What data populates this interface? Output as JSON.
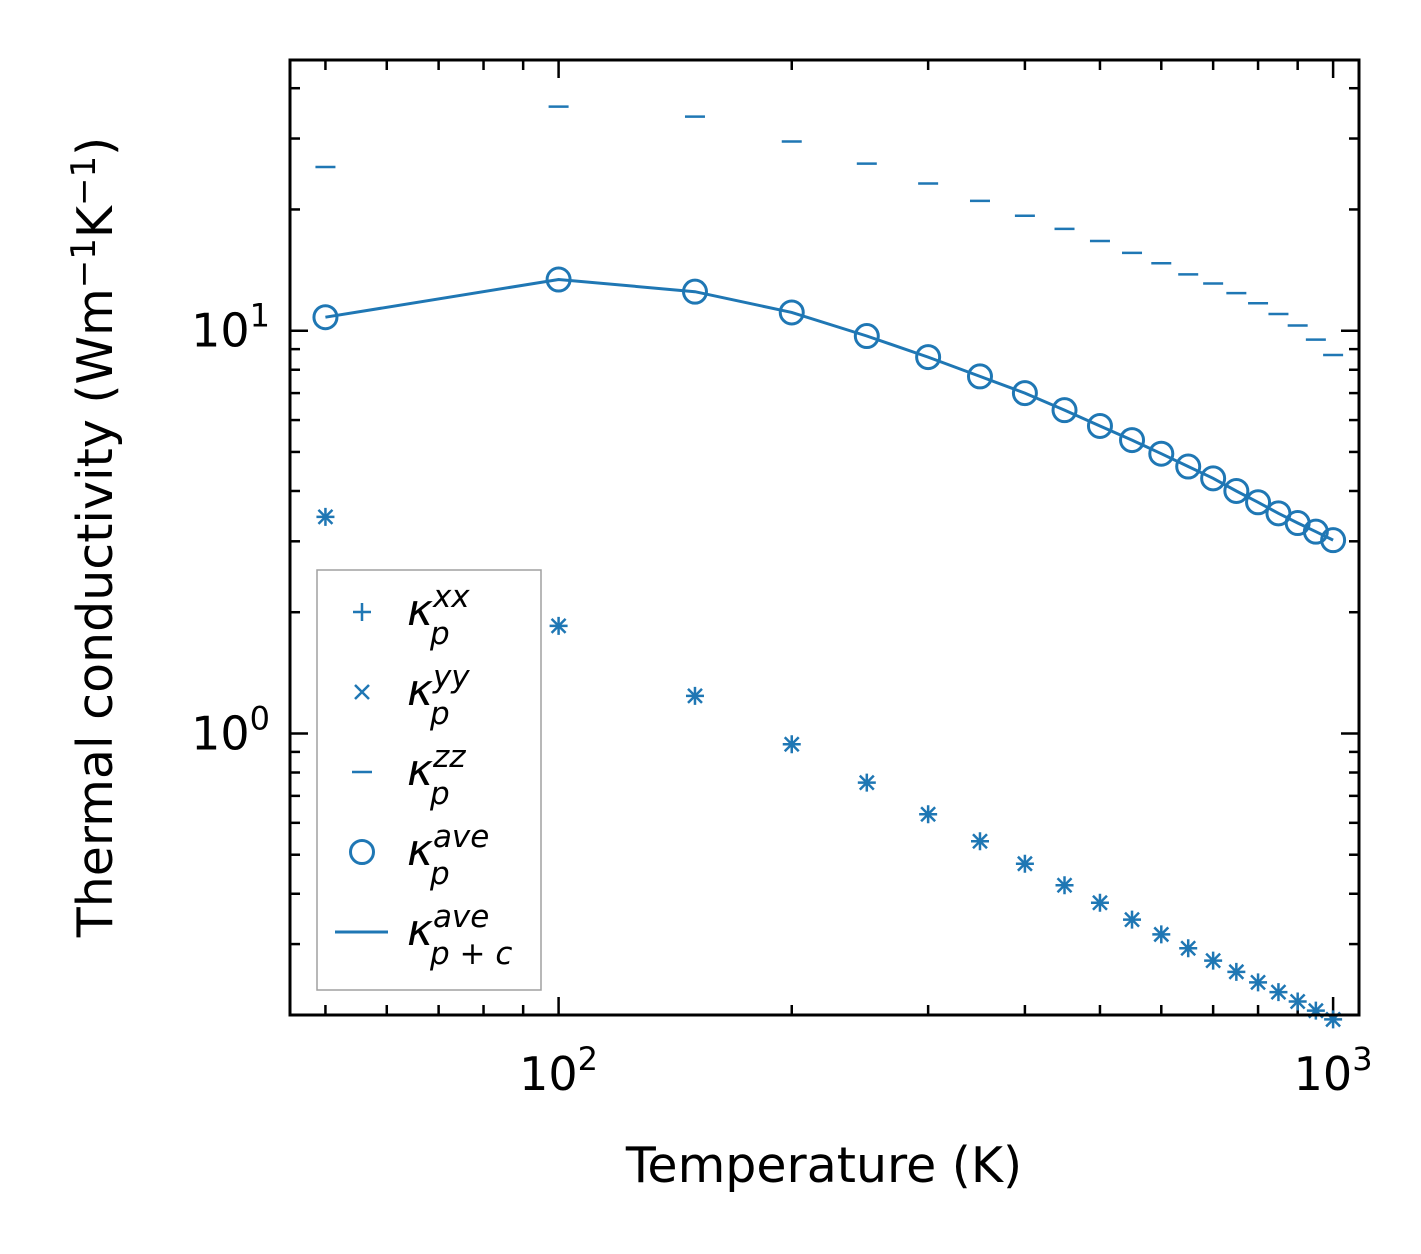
{
  "chart_data": {
    "type": "scatter",
    "xscale": "log",
    "yscale": "log",
    "xlim": [
      45,
      1080
    ],
    "ylim": [
      0.2,
      47
    ],
    "xlabel": "Temperature (K)",
    "ylabel": {
      "main": "Thermal conductivity (Wm",
      "sup1": "−1",
      "mid": "K",
      "sup2": "−1",
      "end": ")"
    },
    "x_ticks": [
      {
        "value": 100,
        "base": "10",
        "exp": "2"
      },
      {
        "value": 1000,
        "base": "10",
        "exp": "3"
      }
    ],
    "y_ticks": [
      {
        "value": 1,
        "base": "10",
        "exp": "0"
      },
      {
        "value": 10,
        "base": "10",
        "exp": "1"
      }
    ],
    "grid": false,
    "legend_position": "lower-left",
    "color": "#1f77b4",
    "x": [
      50,
      100,
      150,
      200,
      250,
      300,
      350,
      400,
      450,
      500,
      550,
      600,
      650,
      700,
      750,
      800,
      850,
      900,
      950,
      1000
    ],
    "series": [
      {
        "name": "kappa_p_xx",
        "label_sym": "κ",
        "label_sub": "p",
        "label_sup": "xx",
        "marker": "plus",
        "values": [
          3.45,
          1.85,
          1.24,
          0.94,
          0.755,
          0.63,
          0.54,
          0.475,
          0.42,
          0.38,
          0.345,
          0.317,
          0.293,
          0.273,
          0.256,
          0.241,
          0.228,
          0.216,
          0.205,
          0.195
        ]
      },
      {
        "name": "kappa_p_yy",
        "label_sym": "κ",
        "label_sub": "p",
        "label_sup": "yy",
        "marker": "x",
        "values": [
          3.45,
          1.85,
          1.24,
          0.94,
          0.755,
          0.63,
          0.54,
          0.475,
          0.42,
          0.38,
          0.345,
          0.317,
          0.293,
          0.273,
          0.256,
          0.241,
          0.228,
          0.216,
          0.205,
          0.195
        ]
      },
      {
        "name": "kappa_p_zz",
        "label_sym": "κ",
        "label_sub": "p",
        "label_sup": "zz",
        "marker": "hline",
        "values": [
          25.5,
          36.0,
          34.0,
          29.5,
          26.0,
          23.2,
          21.0,
          19.3,
          17.9,
          16.7,
          15.6,
          14.7,
          13.8,
          13.1,
          12.4,
          11.7,
          11.0,
          10.3,
          9.5,
          8.7
        ]
      },
      {
        "name": "kappa_p_ave",
        "label_sym": "κ",
        "label_sub": "p",
        "label_sup": "ave",
        "marker": "circle",
        "values": [
          10.8,
          13.4,
          12.5,
          11.1,
          9.7,
          8.6,
          7.7,
          7.0,
          6.35,
          5.8,
          5.35,
          4.95,
          4.6,
          4.3,
          4.0,
          3.75,
          3.52,
          3.33,
          3.17,
          3.02
        ]
      },
      {
        "name": "kappa_pc_ave",
        "label_sym": "κ",
        "label_sub": "p + c",
        "label_sup": "ave",
        "marker": "line",
        "values": [
          10.8,
          13.4,
          12.5,
          11.1,
          9.7,
          8.6,
          7.7,
          7.0,
          6.35,
          5.8,
          5.35,
          4.95,
          4.6,
          4.3,
          4.0,
          3.75,
          3.52,
          3.33,
          3.17,
          3.02
        ]
      }
    ]
  }
}
